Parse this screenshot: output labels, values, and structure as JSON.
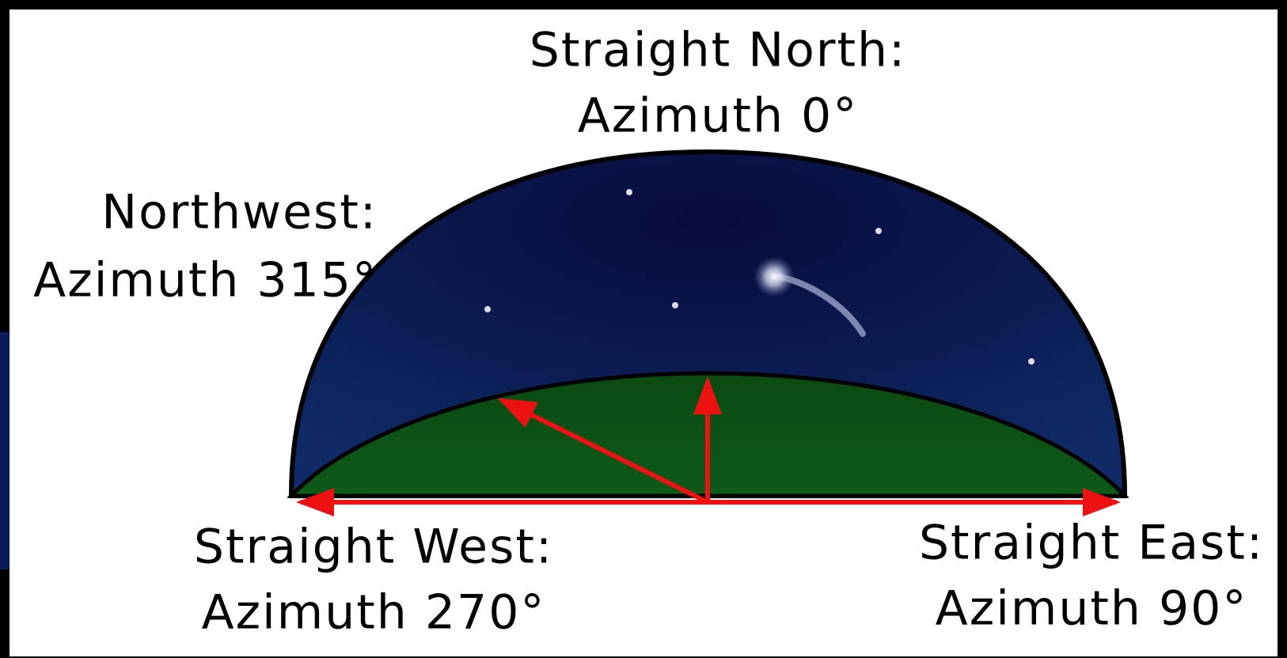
{
  "labels": [
    {
      "direction": "Straight North:",
      "azimuth": "Azimuth 0°"
    },
    {
      "direction": "Northwest:",
      "azimuth": "Azimuth 315°"
    },
    {
      "direction": "Straight West:",
      "azimuth": "Azimuth 270°"
    },
    {
      "direction": "Straight East:",
      "azimuth": "Azimuth 90°"
    }
  ]
}
